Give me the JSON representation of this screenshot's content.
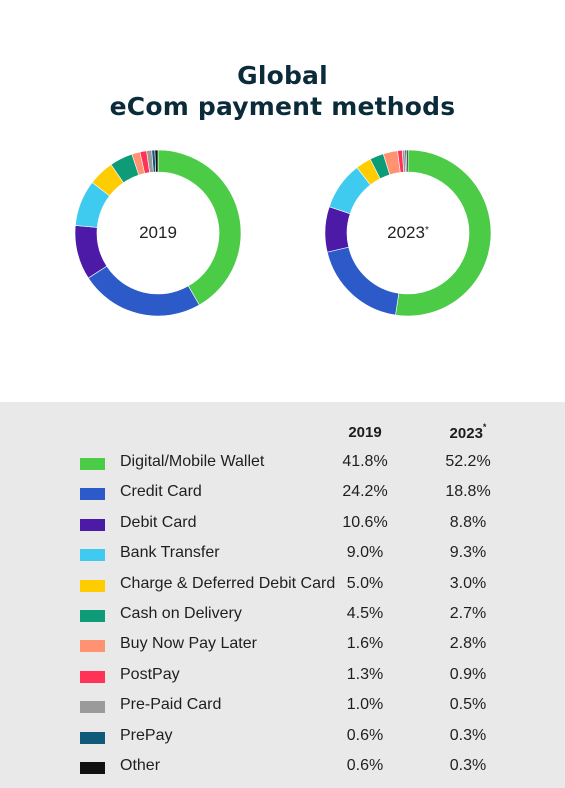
{
  "title": {
    "line1": "Global",
    "line2": "eCom payment methods"
  },
  "colors": {
    "Digital/Mobile Wallet": "#4ccb47",
    "Credit Card": "#2c5ac8",
    "Debit Card": "#4c1aa6",
    "Bank Transfer": "#3fcaf0",
    "Charge & Deferred Debit Card": "#ffcc00",
    "Cash on Delivery": "#0e9b78",
    "Buy Now Pay Later": "#ff9270",
    "PostPay": "#ff3355",
    "Pre-Paid Card": "#9a9a9a",
    "PrePay": "#0f5a78",
    "Other": "#111111"
  },
  "chart_data": [
    {
      "type": "pie",
      "variant": "donut",
      "center_label": "2019",
      "center_label_sup": "",
      "categories": [
        "Digital/Mobile Wallet",
        "Credit Card",
        "Debit Card",
        "Bank Transfer",
        "Charge & Deferred Debit Card",
        "Cash on Delivery",
        "Buy Now Pay Later",
        "PostPay",
        "Pre-Paid Card",
        "PrePay",
        "Other"
      ],
      "values": [
        41.8,
        24.2,
        10.6,
        9.0,
        5.0,
        4.5,
        1.6,
        1.3,
        1.0,
        0.6,
        0.6
      ]
    },
    {
      "type": "pie",
      "variant": "donut",
      "center_label": "2023",
      "center_label_sup": "*",
      "categories": [
        "Digital/Mobile Wallet",
        "Credit Card",
        "Debit Card",
        "Bank Transfer",
        "Charge & Deferred Debit Card",
        "Cash on Delivery",
        "Buy Now Pay Later",
        "PostPay",
        "Pre-Paid Card",
        "PrePay",
        "Other"
      ],
      "values": [
        52.2,
        18.8,
        8.8,
        9.3,
        3.0,
        2.7,
        2.8,
        0.9,
        0.5,
        0.3,
        0.3
      ]
    }
  ],
  "table": {
    "header_2019": "2019",
    "header_2023": "2023",
    "header_2023_sup": "*",
    "rows": [
      {
        "label": "Digital/Mobile Wallet",
        "v2019": "41.8%",
        "v2023": "52.2%"
      },
      {
        "label": "Credit Card",
        "v2019": "24.2%",
        "v2023": "18.8%"
      },
      {
        "label": "Debit Card",
        "v2019": "10.6%",
        "v2023": "8.8%"
      },
      {
        "label": "Bank Transfer",
        "v2019": "9.0%",
        "v2023": "9.3%"
      },
      {
        "label": "Charge & Deferred Debit Card",
        "v2019": "5.0%",
        "v2023": "3.0%"
      },
      {
        "label": "Cash on Delivery",
        "v2019": "4.5%",
        "v2023": "2.7%"
      },
      {
        "label": "Buy Now Pay Later",
        "v2019": "1.6%",
        "v2023": "2.8%"
      },
      {
        "label": "PostPay",
        "v2019": "1.3%",
        "v2023": "0.9%"
      },
      {
        "label": "Pre-Paid Card",
        "v2019": "1.0%",
        "v2023": "0.5%"
      },
      {
        "label": "PrePay",
        "v2019": "0.6%",
        "v2023": "0.3%"
      },
      {
        "label": "Other",
        "v2019": "0.6%",
        "v2023": "0.3%"
      }
    ]
  }
}
